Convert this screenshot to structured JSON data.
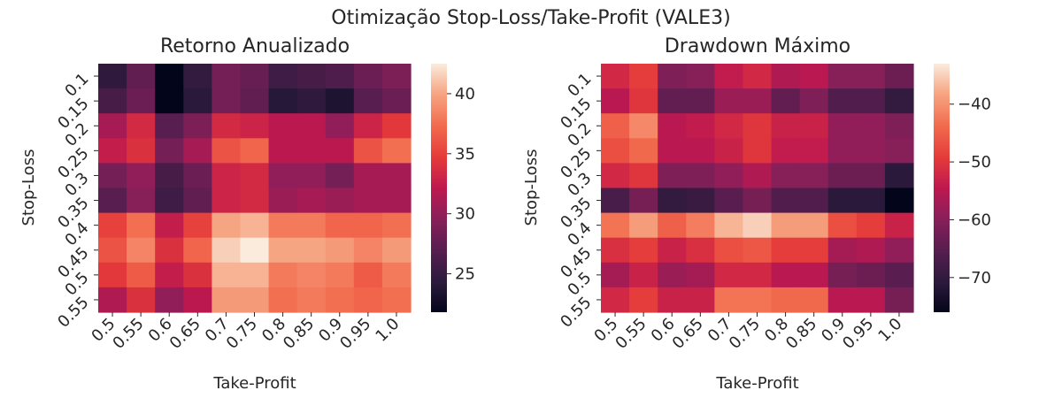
{
  "suptitle": "Otimização Stop-Loss/Take-Profit (VALE3)",
  "chart_data": [
    {
      "type": "heatmap",
      "title": "Retorno Anualizado",
      "xlabel": "Take-Profit",
      "ylabel": "Stop-Loss",
      "x": [
        "0.5",
        "0.55",
        "0.6",
        "0.65",
        "0.7",
        "0.75",
        "0.8",
        "0.85",
        "0.9",
        "0.95",
        "1.0"
      ],
      "y": [
        "0.1",
        "0.15",
        "0.2",
        "0.25",
        "0.3",
        "0.35",
        "0.4",
        "0.45",
        "0.5",
        "0.55"
      ],
      "values": [
        [
          24.5,
          27.5,
          21.8,
          24.8,
          28.5,
          27.8,
          25.5,
          26.0,
          26.5,
          28.0,
          29.0
        ],
        [
          26.0,
          28.0,
          21.8,
          24.2,
          28.5,
          27.5,
          24.0,
          24.5,
          23.5,
          27.0,
          28.0
        ],
        [
          31.0,
          33.5,
          27.0,
          29.0,
          33.5,
          33.0,
          32.0,
          32.0,
          30.0,
          33.0,
          34.5
        ],
        [
          32.5,
          34.0,
          28.5,
          31.0,
          36.0,
          37.0,
          32.0,
          32.0,
          32.0,
          36.0,
          37.5
        ],
        [
          28.5,
          30.0,
          26.0,
          28.0,
          33.0,
          33.5,
          30.0,
          30.0,
          28.5,
          31.0,
          31.0
        ],
        [
          27.0,
          29.5,
          25.5,
          27.5,
          33.0,
          33.5,
          30.5,
          31.0,
          30.5,
          31.0,
          31.0
        ],
        [
          35.0,
          37.5,
          32.5,
          35.0,
          40.0,
          40.5,
          38.0,
          38.0,
          37.0,
          37.0,
          37.5
        ],
        [
          36.0,
          38.5,
          34.0,
          37.0,
          41.5,
          42.5,
          40.0,
          40.0,
          39.5,
          38.5,
          39.5
        ],
        [
          34.5,
          36.5,
          32.5,
          34.0,
          40.5,
          40.5,
          38.0,
          38.5,
          38.0,
          36.5,
          38.0
        ],
        [
          31.5,
          34.0,
          30.0,
          32.0,
          39.5,
          39.5,
          37.5,
          38.0,
          37.5,
          37.0,
          37.5
        ]
      ],
      "colorbar": {
        "ticks": [
          25,
          30,
          35,
          40
        ],
        "min": 21.8,
        "max": 42.5
      },
      "colormap": "rocket"
    },
    {
      "type": "heatmap",
      "title": "Drawdown Máximo",
      "xlabel": "Take-Profit",
      "ylabel": "Stop-Loss",
      "x": [
        "0.5",
        "0.55",
        "0.6",
        "0.65",
        "0.7",
        "0.75",
        "0.8",
        "0.85",
        "0.9",
        "0.95",
        "1.0"
      ],
      "y": [
        "0.1",
        "0.15",
        "0.2",
        "0.25",
        "0.3",
        "0.35",
        "0.4",
        "0.45",
        "0.5",
        "0.55"
      ],
      "values": [
        [
          -52,
          -49,
          -61,
          -60,
          -54,
          -52,
          -56,
          -55,
          -60,
          -60,
          -63
        ],
        [
          -55,
          -50,
          -64,
          -64,
          -58,
          -58,
          -64,
          -61,
          -66,
          -66,
          -70
        ],
        [
          -45,
          -41,
          -55,
          -54,
          -52,
          -50,
          -53,
          -53,
          -59,
          -59,
          -61
        ],
        [
          -47,
          -44,
          -55,
          -55,
          -53,
          -50,
          -54,
          -54,
          -59,
          -59,
          -60
        ],
        [
          -52,
          -50,
          -61,
          -61,
          -59,
          -56,
          -60,
          -60,
          -63,
          -63,
          -71
        ],
        [
          -67,
          -62,
          -70,
          -69,
          -65,
          -62,
          -66,
          -66,
          -71,
          -71,
          -76
        ],
        [
          -43,
          -39,
          -45,
          -42,
          -37,
          -35,
          -39,
          -39,
          -47,
          -49,
          -53
        ],
        [
          -51,
          -49,
          -53,
          -51,
          -47,
          -46,
          -49,
          -49,
          -57,
          -56,
          -59
        ],
        [
          -57,
          -53,
          -58,
          -57,
          -52,
          -52,
          -55,
          -55,
          -62,
          -63,
          -65
        ],
        [
          -52,
          -49,
          -53,
          -53,
          -43,
          -43,
          -44,
          -44,
          -55,
          -55,
          -62
        ]
      ],
      "colorbar": {
        "ticks": [
          -40,
          -50,
          -60,
          -70
        ],
        "min": -76,
        "max": -33
      },
      "colormap": "rocket"
    }
  ]
}
